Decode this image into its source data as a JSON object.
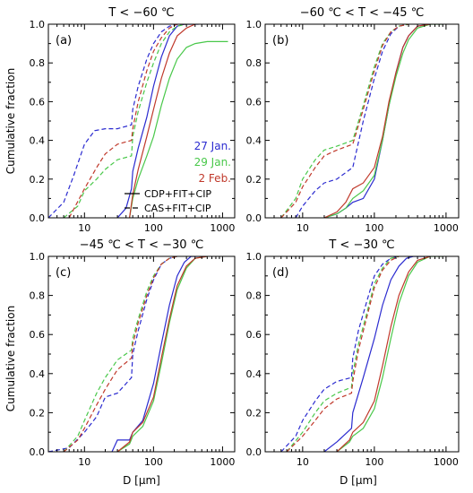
{
  "figure": {
    "ylabel": "Cumulative fraction",
    "xlabel": "D [μm]"
  },
  "colors": {
    "jan27": "#2b2bd0",
    "jan29": "#49c84a",
    "feb2": "#c0392b",
    "axis": "#000000"
  },
  "legend": {
    "dates": [
      {
        "label": "27 Jan.",
        "color": "#2b2bd0"
      },
      {
        "label": "29 Jan.",
        "color": "#49c84a"
      },
      {
        "label": "2 Feb.",
        "color": "#c0392b"
      }
    ],
    "methods": [
      {
        "label": "CDP+FIT+CIP",
        "style": "solid"
      },
      {
        "label": "CAS+FIT+CIP",
        "style": "dashed"
      }
    ]
  },
  "chart_data": [
    {
      "type": "line",
      "panel": "(a)",
      "title": "T < −60 ℃",
      "xscale": "log",
      "xlim": [
        3,
        1500
      ],
      "ylim": [
        0,
        1
      ],
      "xticks": [
        "10",
        "100",
        "1000"
      ],
      "yticks": [
        "0.0",
        "0.2",
        "0.4",
        "0.6",
        "0.8",
        "1.0"
      ],
      "series": [
        {
          "name": "27 Jan.",
          "method": "CDP+FIT+CIP",
          "color": "#2b2bd0",
          "dash": false,
          "x": [
            30,
            40,
            48,
            50,
            60,
            80,
            100,
            130,
            170,
            220,
            280,
            350,
            450
          ],
          "y": [
            0,
            0.05,
            0.15,
            0.24,
            0.36,
            0.52,
            0.68,
            0.83,
            0.94,
            0.99,
            1.0,
            1.0,
            1.0
          ]
        },
        {
          "name": "29 Jan.",
          "method": "CDP+FIT+CIP",
          "color": "#49c84a",
          "dash": false,
          "x": [
            45,
            50,
            60,
            80,
            100,
            130,
            170,
            220,
            300,
            400,
            600,
            900,
            1200
          ],
          "y": [
            0,
            0.1,
            0.2,
            0.32,
            0.42,
            0.58,
            0.72,
            0.82,
            0.88,
            0.9,
            0.91,
            0.91,
            0.91
          ]
        },
        {
          "name": "2 Feb.",
          "method": "CDP+FIT+CIP",
          "color": "#c0392b",
          "dash": false,
          "x": [
            45,
            50,
            60,
            80,
            100,
            130,
            170,
            220,
            300,
            400
          ],
          "y": [
            0,
            0.12,
            0.25,
            0.42,
            0.56,
            0.72,
            0.85,
            0.94,
            0.98,
            1.0
          ]
        },
        {
          "name": "27 Jan.",
          "method": "CAS+FIT+CIP",
          "color": "#2b2bd0",
          "dash": true,
          "x": [
            3,
            5,
            7,
            10,
            14,
            20,
            30,
            48,
            50,
            60,
            80,
            100,
            130,
            170,
            220,
            300
          ],
          "y": [
            0,
            0.08,
            0.22,
            0.38,
            0.45,
            0.46,
            0.46,
            0.48,
            0.56,
            0.68,
            0.82,
            0.9,
            0.96,
            0.99,
            1.0,
            1.0
          ]
        },
        {
          "name": "29 Jan.",
          "method": "CAS+FIT+CIP",
          "color": "#49c84a",
          "dash": true,
          "x": [
            5,
            8,
            10,
            15,
            20,
            30,
            48,
            50,
            60,
            80,
            100,
            130,
            170,
            220,
            300
          ],
          "y": [
            0,
            0.06,
            0.14,
            0.2,
            0.25,
            0.3,
            0.32,
            0.42,
            0.55,
            0.7,
            0.8,
            0.9,
            0.96,
            0.99,
            1.0
          ]
        },
        {
          "name": "2 Feb.",
          "method": "CAS+FIT+CIP",
          "color": "#c0392b",
          "dash": true,
          "x": [
            6,
            10,
            15,
            20,
            30,
            48,
            50,
            60,
            80,
            100,
            130,
            170,
            220,
            300
          ],
          "y": [
            0,
            0.15,
            0.26,
            0.33,
            0.38,
            0.4,
            0.46,
            0.6,
            0.76,
            0.86,
            0.93,
            0.98,
            1.0,
            1.0
          ]
        }
      ]
    },
    {
      "type": "line",
      "panel": "(b)",
      "title": "−60 ℃ < T < −45 ℃",
      "xscale": "log",
      "xlim": [
        3,
        1500
      ],
      "ylim": [
        0,
        1
      ],
      "xticks": [
        "10",
        "100",
        "1000"
      ],
      "yticks": [
        "0.0",
        "0.2",
        "0.4",
        "0.6",
        "0.8",
        "1.0"
      ],
      "series": [
        {
          "name": "27 Jan.",
          "method": "CDP+FIT+CIP",
          "color": "#2b2bd0",
          "dash": false,
          "x": [
            20,
            30,
            40,
            50,
            70,
            100,
            130,
            160,
            200,
            250,
            300,
            400,
            600
          ],
          "y": [
            0,
            0.02,
            0.05,
            0.08,
            0.1,
            0.2,
            0.4,
            0.58,
            0.75,
            0.88,
            0.94,
            0.99,
            1.0
          ]
        },
        {
          "name": "29 Jan.",
          "method": "CDP+FIT+CIP",
          "color": "#49c84a",
          "dash": false,
          "x": [
            20,
            30,
            40,
            50,
            70,
            100,
            130,
            160,
            200,
            250,
            300,
            400,
            600,
            900
          ],
          "y": [
            0,
            0.02,
            0.05,
            0.1,
            0.14,
            0.22,
            0.4,
            0.58,
            0.73,
            0.85,
            0.92,
            0.98,
            1.0,
            1.0
          ]
        },
        {
          "name": "2 Feb.",
          "method": "CDP+FIT+CIP",
          "color": "#c0392b",
          "dash": false,
          "x": [
            20,
            30,
            40,
            50,
            70,
            100,
            130,
            160,
            200,
            250,
            300,
            400,
            600
          ],
          "y": [
            0,
            0.03,
            0.08,
            0.15,
            0.18,
            0.26,
            0.42,
            0.6,
            0.75,
            0.88,
            0.94,
            0.99,
            1.0
          ]
        },
        {
          "name": "27 Jan.",
          "method": "CAS+FIT+CIP",
          "color": "#2b2bd0",
          "dash": true,
          "x": [
            8,
            10,
            15,
            20,
            30,
            50,
            70,
            100,
            130,
            170,
            220,
            300
          ],
          "y": [
            0,
            0.06,
            0.14,
            0.18,
            0.2,
            0.26,
            0.5,
            0.72,
            0.86,
            0.95,
            0.99,
            1.0
          ]
        },
        {
          "name": "29 Jan.",
          "method": "CAS+FIT+CIP",
          "color": "#49c84a",
          "dash": true,
          "x": [
            5,
            8,
            10,
            15,
            20,
            30,
            50,
            70,
            100,
            130,
            170,
            220,
            300
          ],
          "y": [
            0,
            0.1,
            0.2,
            0.3,
            0.35,
            0.37,
            0.4,
            0.58,
            0.78,
            0.9,
            0.96,
            0.99,
            1.0
          ]
        },
        {
          "name": "2 Feb.",
          "method": "CAS+FIT+CIP",
          "color": "#c0392b",
          "dash": true,
          "x": [
            5,
            8,
            10,
            15,
            20,
            30,
            50,
            70,
            100,
            130,
            170,
            220,
            300
          ],
          "y": [
            0,
            0.08,
            0.16,
            0.26,
            0.32,
            0.35,
            0.38,
            0.56,
            0.76,
            0.89,
            0.96,
            0.99,
            1.0
          ]
        }
      ]
    },
    {
      "type": "line",
      "panel": "(c)",
      "title": "−45 ℃ < T < −30 ℃",
      "xscale": "log",
      "xlim": [
        3,
        1500
      ],
      "ylim": [
        0,
        1
      ],
      "xticks": [
        "10",
        "100",
        "1000"
      ],
      "yticks": [
        "0.0",
        "0.2",
        "0.4",
        "0.6",
        "0.8",
        "1.0"
      ],
      "series": [
        {
          "name": "27 Jan.",
          "method": "CDP+FIT+CIP",
          "color": "#2b2bd0",
          "dash": false,
          "x": [
            25,
            30,
            45,
            50,
            70,
            100,
            130,
            170,
            220,
            280,
            350,
            500
          ],
          "y": [
            0,
            0.06,
            0.06,
            0.1,
            0.16,
            0.35,
            0.55,
            0.75,
            0.9,
            0.97,
            1.0,
            1.0
          ]
        },
        {
          "name": "29 Jan.",
          "method": "CDP+FIT+CIP",
          "color": "#49c84a",
          "dash": false,
          "x": [
            30,
            45,
            50,
            70,
            100,
            130,
            170,
            220,
            300,
            400,
            600
          ],
          "y": [
            0,
            0.04,
            0.08,
            0.13,
            0.26,
            0.45,
            0.66,
            0.83,
            0.94,
            0.99,
            1.0
          ]
        },
        {
          "name": "2 Feb.",
          "method": "CDP+FIT+CIP",
          "color": "#c0392b",
          "dash": false,
          "x": [
            30,
            45,
            50,
            70,
            100,
            130,
            170,
            220,
            300,
            400,
            600
          ],
          "y": [
            0,
            0.05,
            0.1,
            0.15,
            0.28,
            0.48,
            0.68,
            0.85,
            0.95,
            0.99,
            1.0
          ]
        },
        {
          "name": "27 Jan.",
          "method": "CAS+FIT+CIP",
          "color": "#2b2bd0",
          "dash": true,
          "x": [
            3,
            6,
            10,
            15,
            20,
            30,
            48,
            50,
            60,
            80,
            100,
            130,
            170,
            220
          ],
          "y": [
            0,
            0.02,
            0.1,
            0.18,
            0.28,
            0.3,
            0.38,
            0.5,
            0.62,
            0.78,
            0.88,
            0.96,
            0.99,
            1.0
          ]
        },
        {
          "name": "29 Jan.",
          "method": "CAS+FIT+CIP",
          "color": "#49c84a",
          "dash": true,
          "x": [
            5,
            8,
            10,
            15,
            20,
            30,
            48,
            50,
            60,
            80,
            100,
            130,
            170,
            220
          ],
          "y": [
            0,
            0.08,
            0.16,
            0.3,
            0.38,
            0.47,
            0.52,
            0.58,
            0.68,
            0.82,
            0.9,
            0.96,
            0.99,
            1.0
          ]
        },
        {
          "name": "2 Feb.",
          "method": "CAS+FIT+CIP",
          "color": "#c0392b",
          "dash": true,
          "x": [
            5,
            8,
            10,
            15,
            20,
            30,
            48,
            50,
            60,
            80,
            100,
            130,
            170,
            220
          ],
          "y": [
            0,
            0.06,
            0.12,
            0.24,
            0.32,
            0.42,
            0.48,
            0.55,
            0.66,
            0.8,
            0.89,
            0.96,
            0.99,
            1.0
          ]
        }
      ]
    },
    {
      "type": "line",
      "panel": "(d)",
      "title": "T < −30 ℃",
      "xscale": "log",
      "xlim": [
        3,
        1500
      ],
      "ylim": [
        0,
        1
      ],
      "xticks": [
        "10",
        "100",
        "1000"
      ],
      "yticks": [
        "0.0",
        "0.2",
        "0.4",
        "0.6",
        "0.8",
        "1.0"
      ],
      "series": [
        {
          "name": "27 Jan.",
          "method": "CDP+FIT+CIP",
          "color": "#2b2bd0",
          "dash": false,
          "x": [
            20,
            30,
            48,
            50,
            70,
            100,
            130,
            170,
            220,
            280,
            350,
            500
          ],
          "y": [
            0,
            0.05,
            0.12,
            0.2,
            0.38,
            0.58,
            0.75,
            0.88,
            0.95,
            0.99,
            1.0,
            1.0
          ]
        },
        {
          "name": "29 Jan.",
          "method": "CDP+FIT+CIP",
          "color": "#49c84a",
          "dash": false,
          "x": [
            30,
            45,
            50,
            70,
            100,
            130,
            170,
            220,
            300,
            400,
            600,
            900
          ],
          "y": [
            0,
            0.05,
            0.08,
            0.12,
            0.22,
            0.38,
            0.58,
            0.76,
            0.9,
            0.97,
            1.0,
            1.0
          ]
        },
        {
          "name": "2 Feb.",
          "method": "CDP+FIT+CIP",
          "color": "#c0392b",
          "dash": false,
          "x": [
            30,
            45,
            50,
            70,
            100,
            130,
            170,
            220,
            300,
            400,
            600
          ],
          "y": [
            0,
            0.06,
            0.1,
            0.15,
            0.26,
            0.44,
            0.64,
            0.8,
            0.92,
            0.98,
            1.0
          ]
        },
        {
          "name": "27 Jan.",
          "method": "CAS+FIT+CIP",
          "color": "#2b2bd0",
          "dash": true,
          "x": [
            5,
            8,
            10,
            15,
            20,
            30,
            48,
            50,
            60,
            80,
            100,
            130,
            170,
            220
          ],
          "y": [
            0,
            0.08,
            0.16,
            0.26,
            0.32,
            0.36,
            0.38,
            0.48,
            0.62,
            0.78,
            0.9,
            0.96,
            0.99,
            1.0
          ]
        },
        {
          "name": "29 Jan.",
          "method": "CAS+FIT+CIP",
          "color": "#49c84a",
          "dash": true,
          "x": [
            6,
            10,
            15,
            20,
            30,
            48,
            50,
            60,
            80,
            100,
            130,
            170,
            220
          ],
          "y": [
            0,
            0.1,
            0.2,
            0.26,
            0.3,
            0.33,
            0.4,
            0.55,
            0.72,
            0.86,
            0.94,
            0.99,
            1.0
          ]
        },
        {
          "name": "2 Feb.",
          "method": "CAS+FIT+CIP",
          "color": "#c0392b",
          "dash": true,
          "x": [
            6,
            10,
            15,
            20,
            30,
            48,
            50,
            60,
            80,
            100,
            130,
            170,
            220
          ],
          "y": [
            0,
            0.08,
            0.16,
            0.22,
            0.27,
            0.3,
            0.36,
            0.52,
            0.7,
            0.84,
            0.93,
            0.98,
            1.0
          ]
        }
      ]
    }
  ]
}
